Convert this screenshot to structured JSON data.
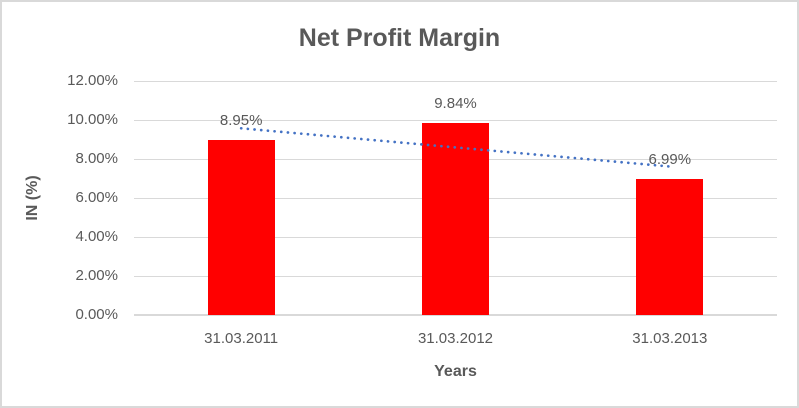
{
  "chart_data": {
    "type": "bar",
    "title": "Net Profit Margin",
    "xlabel": "Years",
    "ylabel": "IN (%)",
    "categories": [
      "31.03.2011",
      "31.03.2012",
      "31.03.2013"
    ],
    "values": [
      8.95,
      9.84,
      6.99
    ],
    "value_labels": [
      "8.95%",
      "9.84%",
      "6.99%"
    ],
    "series_name": "Net Profit Margin",
    "ylim": [
      0,
      12
    ],
    "y_ticks": [
      {
        "value": 0,
        "label": "0.00%"
      },
      {
        "value": 2,
        "label": "2.00%"
      },
      {
        "value": 4,
        "label": "4.00%"
      },
      {
        "value": 6,
        "label": "6.00%"
      },
      {
        "value": 8,
        "label": "8.00%"
      },
      {
        "value": 10,
        "label": "10.00%"
      },
      {
        "value": 12,
        "label": "12.00%"
      }
    ],
    "grid": true,
    "legend": "none",
    "bar_color": "#FF0000",
    "trendline": {
      "type": "linear",
      "style": "dotted",
      "color": "#4472C4"
    },
    "colors": {
      "text": "#595959",
      "gridline": "#D9D9D9",
      "axis_line": "#D9D9D9",
      "background": "#FFFFFF",
      "border": "#D9D9D9"
    }
  }
}
